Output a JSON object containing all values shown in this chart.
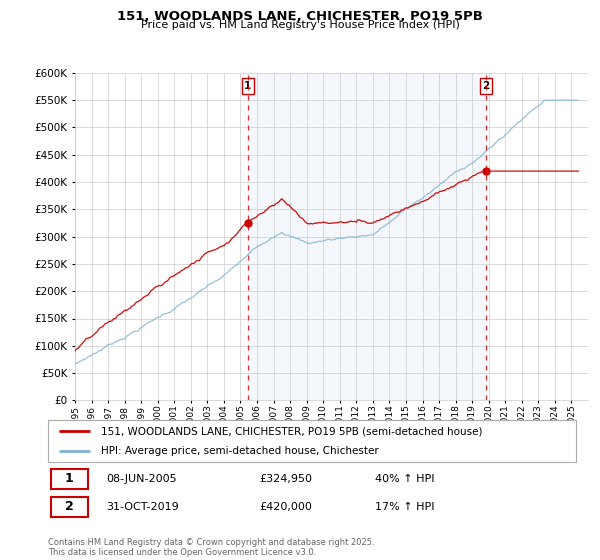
{
  "title": "151, WOODLANDS LANE, CHICHESTER, PO19 5PB",
  "subtitle": "Price paid vs. HM Land Registry's House Price Index (HPI)",
  "line1_color": "#cc0000",
  "line2_color": "#7fb3d3",
  "dashed_color": "#cc0000",
  "fill_color": "#ddeeff",
  "background_color": "#ffffff",
  "grid_color": "#cccccc",
  "legend_label1": "151, WOODLANDS LANE, CHICHESTER, PO19 5PB (semi-detached house)",
  "legend_label2": "HPI: Average price, semi-detached house, Chichester",
  "event1_label": "1",
  "event1_date": "08-JUN-2005",
  "event1_price": "£324,950",
  "event1_hpi": "40% ↑ HPI",
  "event1_x": 2005.44,
  "event1_y": 324950,
  "event2_label": "2",
  "event2_date": "31-OCT-2019",
  "event2_price": "£420,000",
  "event2_hpi": "17% ↑ HPI",
  "event2_x": 2019.83,
  "event2_y": 420000,
  "footnote": "Contains HM Land Registry data © Crown copyright and database right 2025.\nThis data is licensed under the Open Government Licence v3.0.",
  "xmin": 1995,
  "xmax": 2026,
  "ylim": [
    0,
    600000
  ],
  "yticks": [
    0,
    50000,
    100000,
    150000,
    200000,
    250000,
    300000,
    350000,
    400000,
    450000,
    500000,
    550000,
    600000
  ]
}
